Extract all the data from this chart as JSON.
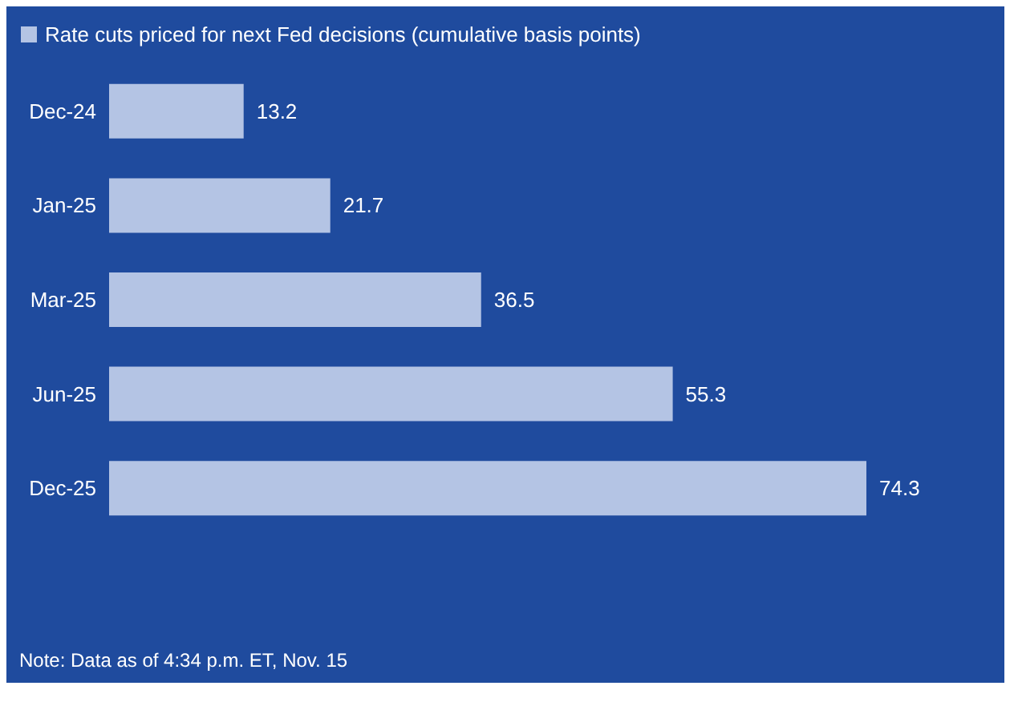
{
  "chart_data": {
    "type": "bar",
    "orientation": "horizontal",
    "categories": [
      "Dec-24",
      "Jan-25",
      "Mar-25",
      "Jun-25",
      "Dec-25"
    ],
    "series": [
      {
        "name": "Rate cuts priced for next Fed decisions (cumulative basis points)",
        "color": "#b4c4e4",
        "values": [
          13.2,
          21.7,
          36.5,
          55.3,
          74.3
        ]
      }
    ],
    "data_labels": true,
    "legend": "top left",
    "grid": false,
    "annotations": [
      "Note: Data as of 4:34 p.m. ET, Nov. 15"
    ]
  }
}
